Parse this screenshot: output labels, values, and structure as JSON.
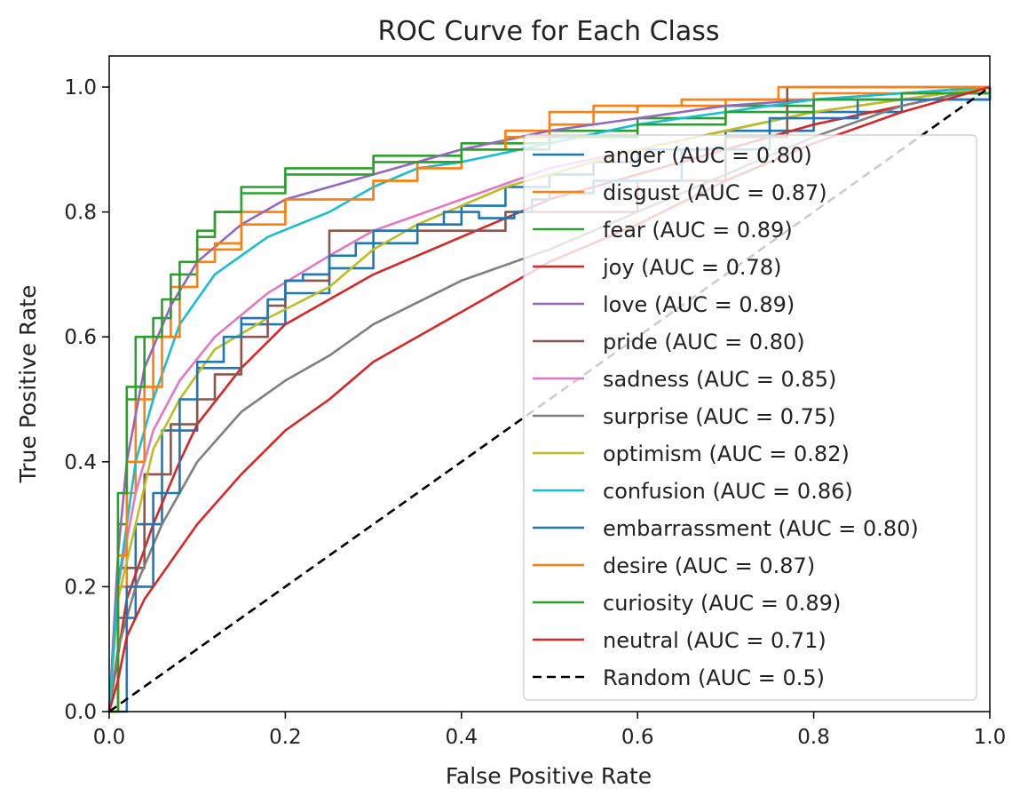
{
  "chart_data": {
    "type": "line",
    "title": "ROC Curve for Each Class",
    "xlabel": "False Positive Rate",
    "ylabel": "True Positive Rate",
    "xlim": [
      0,
      1
    ],
    "ylim": [
      0,
      1.05
    ],
    "xticks": [
      "0.0",
      "0.2",
      "0.4",
      "0.6",
      "0.8",
      "1.0"
    ],
    "yticks": [
      "0.0",
      "0.2",
      "0.4",
      "0.6",
      "0.8",
      "1.0"
    ],
    "grid": false,
    "legend_position": "lower right",
    "series": [
      {
        "name": "anger (AUC = 0.80)",
        "color": "#1f77b4",
        "step": true,
        "points": [
          [
            0,
            0
          ],
          [
            0.01,
            0.15
          ],
          [
            0.03,
            0.3
          ],
          [
            0.06,
            0.45
          ],
          [
            0.1,
            0.55
          ],
          [
            0.15,
            0.62
          ],
          [
            0.2,
            0.67
          ],
          [
            0.25,
            0.71
          ],
          [
            0.3,
            0.75
          ],
          [
            0.35,
            0.78
          ],
          [
            0.4,
            0.81
          ],
          [
            0.45,
            0.84
          ],
          [
            0.5,
            0.86
          ],
          [
            0.55,
            0.88
          ],
          [
            0.6,
            0.9
          ],
          [
            0.7,
            0.93
          ],
          [
            0.8,
            0.96
          ],
          [
            0.9,
            0.98
          ],
          [
            1,
            1
          ]
        ]
      },
      {
        "name": "disgust (AUC = 0.87)",
        "color": "#ff7f0e",
        "step": true,
        "points": [
          [
            0,
            0
          ],
          [
            0.01,
            0.2
          ],
          [
            0.02,
            0.35
          ],
          [
            0.03,
            0.5
          ],
          [
            0.05,
            0.6
          ],
          [
            0.07,
            0.68
          ],
          [
            0.1,
            0.74
          ],
          [
            0.15,
            0.8
          ],
          [
            0.2,
            0.82
          ],
          [
            0.3,
            0.85
          ],
          [
            0.35,
            0.88
          ],
          [
            0.4,
            0.9
          ],
          [
            0.45,
            0.93
          ],
          [
            0.5,
            0.94
          ],
          [
            0.55,
            0.96
          ],
          [
            0.6,
            0.97
          ],
          [
            0.7,
            0.98
          ],
          [
            0.8,
            0.99
          ],
          [
            1,
            1
          ]
        ]
      },
      {
        "name": "fear (AUC = 0.89)",
        "color": "#2ca02c",
        "step": true,
        "points": [
          [
            0,
            0
          ],
          [
            0.01,
            0.3
          ],
          [
            0.02,
            0.5
          ],
          [
            0.03,
            0.6
          ],
          [
            0.05,
            0.63
          ],
          [
            0.07,
            0.7
          ],
          [
            0.1,
            0.76
          ],
          [
            0.12,
            0.8
          ],
          [
            0.15,
            0.84
          ],
          [
            0.2,
            0.87
          ],
          [
            0.3,
            0.89
          ],
          [
            0.4,
            0.91
          ],
          [
            0.5,
            0.93
          ],
          [
            0.6,
            0.95
          ],
          [
            0.7,
            0.97
          ],
          [
            0.8,
            0.98
          ],
          [
            0.9,
            0.99
          ],
          [
            1,
            1
          ]
        ]
      },
      {
        "name": "joy (AUC = 0.78)",
        "color": "#d62728",
        "step": false,
        "points": [
          [
            0,
            0
          ],
          [
            0.02,
            0.18
          ],
          [
            0.05,
            0.3
          ],
          [
            0.08,
            0.4
          ],
          [
            0.1,
            0.46
          ],
          [
            0.15,
            0.55
          ],
          [
            0.2,
            0.62
          ],
          [
            0.3,
            0.7
          ],
          [
            0.4,
            0.76
          ],
          [
            0.5,
            0.82
          ],
          [
            0.6,
            0.86
          ],
          [
            0.7,
            0.9
          ],
          [
            0.8,
            0.94
          ],
          [
            0.9,
            0.97
          ],
          [
            1,
            1
          ]
        ]
      },
      {
        "name": "love (AUC = 0.89)",
        "color": "#9467bd",
        "step": false,
        "points": [
          [
            0,
            0
          ],
          [
            0.01,
            0.25
          ],
          [
            0.02,
            0.4
          ],
          [
            0.04,
            0.55
          ],
          [
            0.07,
            0.65
          ],
          [
            0.1,
            0.72
          ],
          [
            0.15,
            0.78
          ],
          [
            0.2,
            0.82
          ],
          [
            0.3,
            0.86
          ],
          [
            0.4,
            0.9
          ],
          [
            0.5,
            0.93
          ],
          [
            0.6,
            0.95
          ],
          [
            0.7,
            0.97
          ],
          [
            0.8,
            0.98
          ],
          [
            0.9,
            0.99
          ],
          [
            1,
            1
          ]
        ]
      },
      {
        "name": "pride (AUC = 0.80)",
        "color": "#8c564b",
        "step": true,
        "points": [
          [
            0,
            0
          ],
          [
            0.01,
            0.23
          ],
          [
            0.04,
            0.23
          ],
          [
            0.04,
            0.38
          ],
          [
            0.07,
            0.38
          ],
          [
            0.07,
            0.46
          ],
          [
            0.1,
            0.5
          ],
          [
            0.12,
            0.54
          ],
          [
            0.15,
            0.6
          ],
          [
            0.18,
            0.65
          ],
          [
            0.2,
            0.65
          ],
          [
            0.2,
            0.69
          ],
          [
            0.25,
            0.69
          ],
          [
            0.25,
            0.77
          ],
          [
            0.3,
            0.77
          ],
          [
            0.3,
            0.77
          ],
          [
            0.45,
            0.77
          ],
          [
            0.45,
            0.8
          ],
          [
            0.6,
            0.85
          ],
          [
            0.7,
            0.92
          ],
          [
            0.77,
            0.92
          ],
          [
            0.77,
            1
          ],
          [
            1,
            1
          ]
        ]
      },
      {
        "name": "sadness (AUC = 0.85)",
        "color": "#e377c2",
        "step": false,
        "points": [
          [
            0,
            0
          ],
          [
            0.01,
            0.2
          ],
          [
            0.03,
            0.35
          ],
          [
            0.05,
            0.45
          ],
          [
            0.08,
            0.53
          ],
          [
            0.12,
            0.6
          ],
          [
            0.18,
            0.67
          ],
          [
            0.25,
            0.73
          ],
          [
            0.3,
            0.77
          ],
          [
            0.4,
            0.82
          ],
          [
            0.5,
            0.87
          ],
          [
            0.6,
            0.9
          ],
          [
            0.7,
            0.93
          ],
          [
            0.8,
            0.96
          ],
          [
            0.9,
            0.98
          ],
          [
            1,
            1
          ]
        ]
      },
      {
        "name": "surprise (AUC = 0.75)",
        "color": "#7f7f7f",
        "step": false,
        "points": [
          [
            0,
            0
          ],
          [
            0.01,
            0.1
          ],
          [
            0.03,
            0.2
          ],
          [
            0.06,
            0.3
          ],
          [
            0.1,
            0.4
          ],
          [
            0.15,
            0.48
          ],
          [
            0.2,
            0.53
          ],
          [
            0.25,
            0.57
          ],
          [
            0.3,
            0.62
          ],
          [
            0.4,
            0.69
          ],
          [
            0.5,
            0.74
          ],
          [
            0.6,
            0.8
          ],
          [
            0.7,
            0.86
          ],
          [
            0.8,
            0.92
          ],
          [
            0.9,
            0.97
          ],
          [
            1,
            1
          ]
        ]
      },
      {
        "name": "optimism (AUC = 0.82)",
        "color": "#bcbd22",
        "step": false,
        "points": [
          [
            0,
            0
          ],
          [
            0.01,
            0.18
          ],
          [
            0.03,
            0.3
          ],
          [
            0.05,
            0.42
          ],
          [
            0.08,
            0.5
          ],
          [
            0.12,
            0.58
          ],
          [
            0.18,
            0.63
          ],
          [
            0.25,
            0.68
          ],
          [
            0.3,
            0.74
          ],
          [
            0.35,
            0.78
          ],
          [
            0.4,
            0.81
          ],
          [
            0.45,
            0.84
          ],
          [
            0.5,
            0.86
          ],
          [
            0.6,
            0.9
          ],
          [
            0.7,
            0.93
          ],
          [
            0.8,
            0.96
          ],
          [
            0.9,
            0.98
          ],
          [
            1,
            1
          ]
        ]
      },
      {
        "name": "confusion (AUC = 0.86)",
        "color": "#17becf",
        "step": false,
        "points": [
          [
            0,
            0
          ],
          [
            0.01,
            0.2
          ],
          [
            0.03,
            0.4
          ],
          [
            0.05,
            0.5
          ],
          [
            0.08,
            0.62
          ],
          [
            0.12,
            0.7
          ],
          [
            0.18,
            0.76
          ],
          [
            0.25,
            0.8
          ],
          [
            0.3,
            0.84
          ],
          [
            0.35,
            0.87
          ],
          [
            0.4,
            0.88
          ],
          [
            0.5,
            0.91
          ],
          [
            0.6,
            0.94
          ],
          [
            0.7,
            0.96
          ],
          [
            0.8,
            0.98
          ],
          [
            0.9,
            0.99
          ],
          [
            1,
            1
          ]
        ]
      },
      {
        "name": "embarrassment (AUC = 0.80)",
        "color": "#1f77b4",
        "step": true,
        "points": [
          [
            0,
            0
          ],
          [
            0.02,
            0.2
          ],
          [
            0.05,
            0.35
          ],
          [
            0.08,
            0.5
          ],
          [
            0.1,
            0.56
          ],
          [
            0.13,
            0.6
          ],
          [
            0.15,
            0.63
          ],
          [
            0.18,
            0.66
          ],
          [
            0.2,
            0.69
          ],
          [
            0.22,
            0.7
          ],
          [
            0.25,
            0.73
          ],
          [
            0.28,
            0.75
          ],
          [
            0.3,
            0.77
          ],
          [
            0.35,
            0.78
          ],
          [
            0.38,
            0.8
          ],
          [
            0.4,
            0.8
          ],
          [
            0.42,
            0.8
          ],
          [
            0.42,
            0.79
          ],
          [
            0.46,
            0.8
          ],
          [
            0.48,
            0.82
          ],
          [
            0.5,
            0.83
          ],
          [
            0.55,
            0.85
          ],
          [
            0.65,
            0.9
          ],
          [
            0.75,
            0.95
          ],
          [
            0.85,
            0.98
          ],
          [
            1,
            1
          ]
        ]
      },
      {
        "name": "desire (AUC = 0.87)",
        "color": "#ff7f0e",
        "step": true,
        "points": [
          [
            0,
            0
          ],
          [
            0.01,
            0.25
          ],
          [
            0.02,
            0.4
          ],
          [
            0.04,
            0.52
          ],
          [
            0.06,
            0.6
          ],
          [
            0.08,
            0.68
          ],
          [
            0.1,
            0.72
          ],
          [
            0.12,
            0.75
          ],
          [
            0.15,
            0.78
          ],
          [
            0.2,
            0.82
          ],
          [
            0.3,
            0.85
          ],
          [
            0.35,
            0.87
          ],
          [
            0.4,
            0.9
          ],
          [
            0.45,
            0.92
          ],
          [
            0.5,
            0.96
          ],
          [
            0.55,
            0.97
          ],
          [
            0.65,
            0.98
          ],
          [
            0.76,
            1
          ],
          [
            1,
            1
          ]
        ]
      },
      {
        "name": "curiosity (AUC = 0.89)",
        "color": "#2ca02c",
        "step": true,
        "points": [
          [
            0,
            0
          ],
          [
            0.01,
            0.35
          ],
          [
            0.02,
            0.52
          ],
          [
            0.04,
            0.6
          ],
          [
            0.06,
            0.66
          ],
          [
            0.08,
            0.72
          ],
          [
            0.1,
            0.77
          ],
          [
            0.12,
            0.8
          ],
          [
            0.15,
            0.83
          ],
          [
            0.2,
            0.86
          ],
          [
            0.3,
            0.88
          ],
          [
            0.4,
            0.9
          ],
          [
            0.5,
            0.92
          ],
          [
            0.6,
            0.94
          ],
          [
            0.7,
            0.96
          ],
          [
            0.8,
            0.98
          ],
          [
            0.9,
            0.99
          ],
          [
            1,
            1
          ]
        ]
      },
      {
        "name": "neutral (AUC = 0.71)",
        "color": "#d62728",
        "step": false,
        "points": [
          [
            0,
            0
          ],
          [
            0.01,
            0.05
          ],
          [
            0.02,
            0.12
          ],
          [
            0.04,
            0.18
          ],
          [
            0.07,
            0.24
          ],
          [
            0.1,
            0.3
          ],
          [
            0.15,
            0.38
          ],
          [
            0.2,
            0.45
          ],
          [
            0.25,
            0.5
          ],
          [
            0.3,
            0.56
          ],
          [
            0.4,
            0.64
          ],
          [
            0.5,
            0.72
          ],
          [
            0.6,
            0.78
          ],
          [
            0.7,
            0.85
          ],
          [
            0.8,
            0.91
          ],
          [
            0.9,
            0.96
          ],
          [
            1,
            1
          ]
        ]
      },
      {
        "name": "Random (AUC = 0.5)",
        "color": "#000000",
        "dashed": true,
        "step": false,
        "points": [
          [
            0,
            0
          ],
          [
            1,
            1
          ]
        ]
      }
    ]
  }
}
